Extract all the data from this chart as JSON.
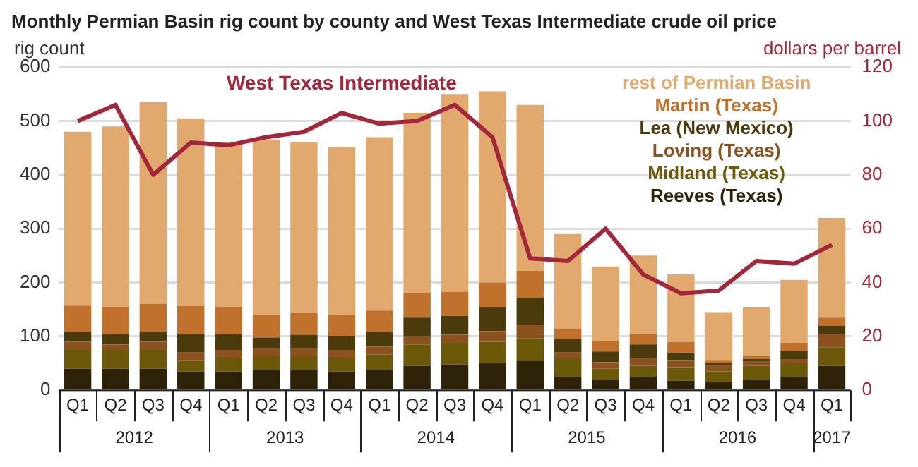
{
  "chart_data": {
    "type": "bar",
    "title": "Monthly Permian Basin rig count by county and West Texas Intermediate crude oil price",
    "ylabel": "rig count",
    "y2label": "dollars per barrel",
    "categories": [
      "Q1",
      "Q2",
      "Q3",
      "Q4",
      "Q1",
      "Q2",
      "Q3",
      "Q4",
      "Q1",
      "Q2",
      "Q3",
      "Q4",
      "Q1",
      "Q2",
      "Q3",
      "Q4",
      "Q1",
      "Q2",
      "Q3",
      "Q4",
      "Q1"
    ],
    "annotations": [
      "2012",
      "2013",
      "2014",
      "2015",
      "2016",
      "2017"
    ],
    "stacked": true,
    "series": [
      {
        "name": "Reeves (Texas)",
        "color": "#2e2208",
        "values": [
          40,
          40,
          40,
          35,
          35,
          38,
          38,
          35,
          38,
          45,
          48,
          50,
          55,
          25,
          20,
          25,
          18,
          15,
          20,
          25,
          45
        ]
      },
      {
        "name": "Midland (Texas)",
        "color": "#6b5808",
        "values": [
          35,
          35,
          35,
          20,
          25,
          25,
          25,
          25,
          28,
          40,
          40,
          40,
          42,
          35,
          20,
          20,
          25,
          20,
          25,
          25,
          35
        ]
      },
      {
        "name": "Loving (Texas)",
        "color": "#8b5220",
        "values": [
          15,
          10,
          15,
          15,
          15,
          15,
          15,
          15,
          15,
          15,
          15,
          20,
          25,
          10,
          12,
          15,
          12,
          10,
          8,
          8,
          25
        ]
      },
      {
        "name": "Lea (New Mexico)",
        "color": "#4a3a0c",
        "values": [
          18,
          20,
          18,
          35,
          30,
          20,
          25,
          25,
          27,
          35,
          35,
          45,
          50,
          25,
          20,
          25,
          15,
          5,
          5,
          15,
          15
        ]
      },
      {
        "name": "Martin (Texas)",
        "color": "#c0712b",
        "values": [
          49,
          50,
          52,
          51,
          50,
          42,
          40,
          40,
          40,
          45,
          45,
          45,
          50,
          20,
          20,
          20,
          20,
          5,
          5,
          15,
          15
        ]
      },
      {
        "name": "rest of Permian Basin",
        "color": "#e2a96f",
        "values": [
          323,
          335,
          375,
          349,
          305,
          325,
          317,
          312,
          322,
          335,
          367,
          355,
          308,
          175,
          138,
          145,
          125,
          90,
          92,
          117,
          185
        ]
      },
      {
        "name": "West Texas Intermediate",
        "type": "line",
        "axis": "y2",
        "color": "#a3273b",
        "values": [
          100,
          106,
          80,
          92,
          91,
          94,
          96,
          103,
          99,
          100,
          106,
          94,
          49,
          48,
          60,
          43,
          36,
          37,
          48,
          47,
          54
        ]
      }
    ],
    "ylim": [
      0,
      600
    ],
    "yticks": [
      0,
      100,
      200,
      300,
      400,
      500,
      600
    ],
    "y2lim": [
      0,
      120
    ],
    "y2ticks": [
      0,
      20,
      40,
      60,
      80,
      100,
      120
    ],
    "grid": "y",
    "legend": "top right"
  }
}
